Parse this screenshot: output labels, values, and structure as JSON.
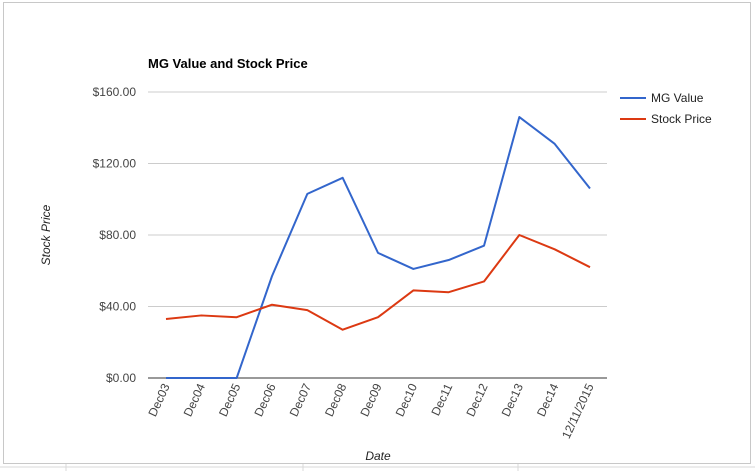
{
  "chart_data": {
    "type": "line",
    "title": "MG Value and Stock Price",
    "xlabel": "Date",
    "ylabel": "Stock Price",
    "categories": [
      "Dec03",
      "Dec04",
      "Dec05",
      "Dec06",
      "Dec07",
      "Dec08",
      "Dec09",
      "Dec10",
      "Dec11",
      "Dec12",
      "Dec13",
      "Dec14",
      "12/11/2015"
    ],
    "ylim": [
      0,
      160
    ],
    "yticks": [
      0,
      40,
      80,
      120,
      160
    ],
    "ytick_labels": [
      "$0.00",
      "$40.00",
      "$80.00",
      "$120.00",
      "$160.00"
    ],
    "grid": true,
    "legend_position": "right",
    "series": [
      {
        "name": "MG Value",
        "color": "#3366cc",
        "values": [
          0,
          0,
          0,
          57,
          103,
          112,
          70,
          61,
          66,
          74,
          146,
          131,
          106
        ]
      },
      {
        "name": "Stock Price",
        "color": "#dc3912",
        "values": [
          33,
          35,
          34,
          41,
          38,
          27,
          34,
          49,
          48,
          54,
          80,
          72,
          62
        ]
      }
    ]
  }
}
